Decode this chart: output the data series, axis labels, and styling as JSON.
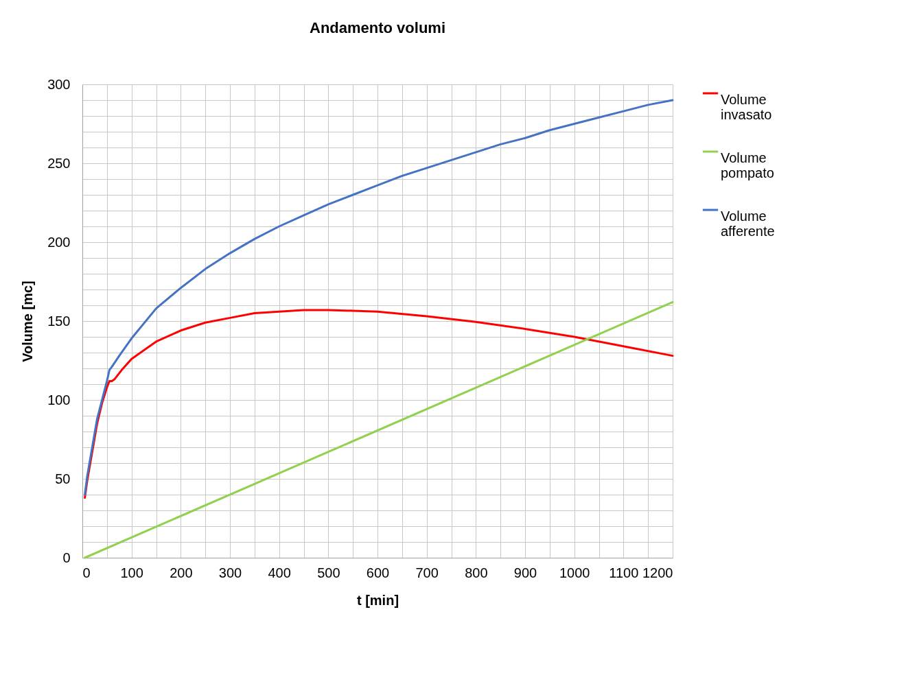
{
  "chart_data": {
    "type": "line",
    "title": "Andamento volumi",
    "xlabel": "t [min]",
    "ylabel": "Volume [mc]",
    "xlim": [
      0,
      1200
    ],
    "ylim": [
      0,
      300
    ],
    "xticks": [
      0,
      {
        "value": 50,
        "label": null
      },
      100,
      {
        "value": 150,
        "label": null
      },
      200,
      {
        "value": 250,
        "label": null
      },
      300,
      {
        "value": 350,
        "label": null
      },
      400,
      {
        "value": 450,
        "label": null
      },
      500,
      {
        "value": 550,
        "label": null
      },
      600,
      {
        "value": 650,
        "label": null
      },
      700,
      {
        "value": 750,
        "label": null
      },
      800,
      {
        "value": 850,
        "label": null
      },
      900,
      {
        "value": 950,
        "label": null
      },
      1000,
      {
        "value": 1050,
        "label": null
      },
      1100,
      {
        "value": 1150,
        "label": null
      },
      1200
    ],
    "yticks": [
      0,
      {
        "value": 10,
        "label": null
      },
      {
        "value": 20,
        "label": null
      },
      {
        "value": 30,
        "label": null
      },
      {
        "value": 40,
        "label": null
      },
      50,
      {
        "value": 60,
        "label": null
      },
      {
        "value": 70,
        "label": null
      },
      {
        "value": 80,
        "label": null
      },
      {
        "value": 90,
        "label": null
      },
      100,
      {
        "value": 110,
        "label": null
      },
      {
        "value": 120,
        "label": null
      },
      {
        "value": 130,
        "label": null
      },
      {
        "value": 140,
        "label": null
      },
      150,
      {
        "value": 160,
        "label": null
      },
      {
        "value": 170,
        "label": null
      },
      {
        "value": 180,
        "label": null
      },
      {
        "value": 190,
        "label": null
      },
      200,
      {
        "value": 210,
        "label": null
      },
      {
        "value": 220,
        "label": null
      },
      {
        "value": 230,
        "label": null
      },
      {
        "value": 240,
        "label": null
      },
      250,
      {
        "value": 260,
        "label": null
      },
      {
        "value": 270,
        "label": null
      },
      {
        "value": 280,
        "label": null
      },
      {
        "value": 290,
        "label": null
      },
      300
    ],
    "grid": true,
    "legend": "right",
    "marker": "none",
    "line_style": "solid",
    "series": [
      {
        "name": "Volume invasato",
        "color": "#ff0000",
        "x": [
          5,
          10,
          20,
          30,
          40,
          50,
          55,
          60,
          65,
          80,
          100,
          150,
          200,
          250,
          300,
          350,
          400,
          450,
          500,
          550,
          600,
          700,
          800,
          900,
          1000,
          1100,
          1200
        ],
        "values": [
          38,
          49,
          67,
          85,
          98,
          108,
          112,
          112,
          113,
          119,
          126,
          137,
          144,
          149,
          152,
          155,
          156,
          157,
          157,
          156.5,
          156,
          153,
          149.5,
          145,
          140,
          134,
          128
        ]
      },
      {
        "name": "Volume pompato",
        "color": "#92d050",
        "x": [
          5,
          1200
        ],
        "values": [
          0,
          162
        ]
      },
      {
        "name": "Volume afferente",
        "color": "#4472c4",
        "x": [
          5,
          10,
          20,
          30,
          40,
          50,
          55,
          60,
          75,
          100,
          150,
          200,
          250,
          300,
          350,
          400,
          450,
          500,
          550,
          600,
          650,
          700,
          750,
          800,
          850,
          900,
          950,
          1000,
          1050,
          1100,
          1150,
          1200
        ],
        "values": [
          40,
          52,
          70,
          88,
          100,
          112,
          119,
          121,
          128,
          139,
          158,
          171,
          183,
          193,
          202,
          210,
          217,
          224,
          230,
          236,
          242,
          247,
          252,
          257,
          262,
          266,
          271,
          275,
          279,
          283,
          287,
          290
        ]
      }
    ]
  }
}
